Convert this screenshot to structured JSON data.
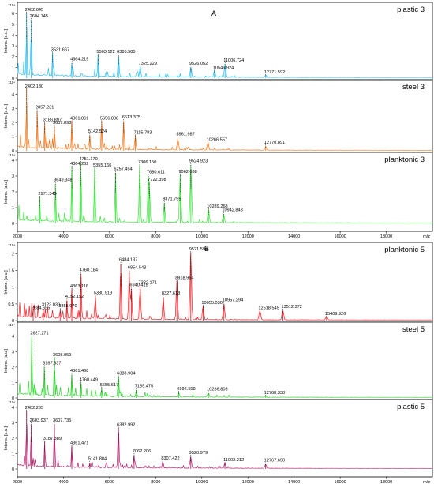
{
  "figure": {
    "section_labels": [
      "A",
      "B"
    ],
    "x_unit": "m/z",
    "y_label": "Intens. [a.u.]",
    "y_exponent": "x10⁴"
  },
  "chart_data": [
    {
      "type": "line",
      "group": "A",
      "name": "plastic 3",
      "color": "#2bbdf0",
      "xlim": [
        2000,
        20000
      ],
      "ylim": [
        0,
        6.6
      ],
      "yticks": [
        0,
        1,
        2,
        3,
        4,
        5,
        6
      ],
      "xticks": [],
      "xticklabels": [],
      "x_axis_labels": false,
      "peaks": [
        {
          "label": "2402.645",
          "x": 2402.6,
          "y": 6.1
        },
        {
          "label": "2604.745",
          "x": 2604.7,
          "y": 5.4
        },
        {
          "label": "3531.667",
          "x": 3531.7,
          "y": 2.4
        },
        {
          "label": "4364.215",
          "x": 4364.2,
          "y": 1.4
        },
        {
          "label": "5503.122",
          "x": 5503.1,
          "y": 2.2
        },
        {
          "label": "6386.585",
          "x": 6386.6,
          "y": 2.1
        },
        {
          "label": "7325.229",
          "x": 7325.2,
          "y": 1.1
        },
        {
          "label": "9526.052",
          "x": 9526.1,
          "y": 1.0
        },
        {
          "label": "10546.924",
          "x": 10546.9,
          "y": 0.7
        },
        {
          "label": "11006.724",
          "x": 11006.7,
          "y": 1.3
        },
        {
          "label": "12771.592",
          "x": 12771.6,
          "y": 0.3
        }
      ]
    },
    {
      "type": "line",
      "group": "A",
      "name": "steel 3",
      "color": "#f47a20",
      "xlim": [
        2000,
        20000
      ],
      "ylim": [
        0,
        4.7
      ],
      "yticks": [
        0,
        1,
        2,
        3,
        4
      ],
      "xticks": [],
      "xticklabels": [],
      "x_axis_labels": false,
      "peaks": [
        {
          "label": "2402.130",
          "x": 2402.1,
          "y": 4.4
        },
        {
          "label": "2857.231",
          "x": 2857.2,
          "y": 2.8
        },
        {
          "label": "3186.897",
          "x": 3186.9,
          "y": 2.0
        },
        {
          "label": "3607.893",
          "x": 3607.9,
          "y": 1.7
        },
        {
          "label": "4361.861",
          "x": 4361.9,
          "y": 2.1
        },
        {
          "label": "5142.524",
          "x": 5142.5,
          "y": 1.1
        },
        {
          "label": "5656.808",
          "x": 5656.8,
          "y": 2.1
        },
        {
          "label": "6613.375",
          "x": 6613.4,
          "y": 2.1
        },
        {
          "label": "7115.783",
          "x": 7115.8,
          "y": 1.1
        },
        {
          "label": "8961.987",
          "x": 8962.0,
          "y": 0.9
        },
        {
          "label": "10266.557",
          "x": 10266.6,
          "y": 0.6
        },
        {
          "label": "12770.891",
          "x": 12770.9,
          "y": 0.3
        }
      ]
    },
    {
      "type": "line",
      "group": "A",
      "name": "planktonic 3",
      "color": "#3de43d",
      "xlim": [
        2000,
        20000
      ],
      "ylim": [
        0,
        4.2
      ],
      "yticks": [
        0,
        1,
        2,
        3,
        4
      ],
      "xticks": [
        2000,
        4000,
        6000,
        8000,
        10000,
        12000,
        14000,
        16000,
        18000
      ],
      "xticklabels": [
        "2000",
        "4000",
        "6000",
        "8000",
        "10000",
        "12000",
        "14000",
        "16000",
        "18000"
      ],
      "x_axis_labels": true,
      "peaks": [
        {
          "label": "2971.345",
          "x": 2971.3,
          "y": 1.7
        },
        {
          "label": "3649.348",
          "x": 3649.3,
          "y": 2.5
        },
        {
          "label": "4364.262",
          "x": 4364.3,
          "y": 3.6
        },
        {
          "label": "4751.170",
          "x": 4751.2,
          "y": 3.9
        },
        {
          "label": "5355.166",
          "x": 5355.2,
          "y": 3.5
        },
        {
          "label": "6257.454",
          "x": 6257.5,
          "y": 3.2
        },
        {
          "label": "7306.150",
          "x": 7306.2,
          "y": 3.7
        },
        {
          "label": "7680.611",
          "x": 7680.6,
          "y": 3.0
        },
        {
          "label": "7722.398",
          "x": 7722.4,
          "y": 2.6
        },
        {
          "label": "8371.795",
          "x": 8371.8,
          "y": 1.3
        },
        {
          "label": "9062.638",
          "x": 9062.6,
          "y": 3.1
        },
        {
          "label": "9524.923",
          "x": 9524.9,
          "y": 3.7
        },
        {
          "label": "10289.268",
          "x": 10289.3,
          "y": 0.9
        },
        {
          "label": "10942.843",
          "x": 10942.8,
          "y": 0.6
        }
      ]
    },
    {
      "type": "line",
      "group": "B",
      "name": "planktonic 5",
      "color": "#e8242b",
      "xlim": [
        2000,
        20000
      ],
      "ylim": [
        0,
        2.2
      ],
      "yticks": [
        0,
        0.5,
        1.0,
        1.5,
        2.0
      ],
      "xticks": [],
      "xticklabels": [],
      "x_axis_labels": false,
      "peaks": [
        {
          "label": "2684.695",
          "x": 2684.7,
          "y": 0.3
        },
        {
          "label": "3123.030",
          "x": 3123.0,
          "y": 0.35
        },
        {
          "label": "3855.970",
          "x": 3856.0,
          "y": 0.35
        },
        {
          "label": "4152.152",
          "x": 4152.2,
          "y": 0.6
        },
        {
          "label": "4363.116",
          "x": 4363.1,
          "y": 0.95
        },
        {
          "label": "4760.184",
          "x": 4760.2,
          "y": 1.4
        },
        {
          "label": "5380.919",
          "x": 5380.9,
          "y": 0.75
        },
        {
          "label": "6484.137",
          "x": 6484.1,
          "y": 1.7
        },
        {
          "label": "6854.543",
          "x": 6854.5,
          "y": 1.5
        },
        {
          "label": "6940.415",
          "x": 6940.4,
          "y": 0.95
        },
        {
          "label": "7322.171",
          "x": 7322.2,
          "y": 1.05
        },
        {
          "label": "8327.618",
          "x": 8327.6,
          "y": 0.7
        },
        {
          "label": "8918.964",
          "x": 8919.0,
          "y": 1.2
        },
        {
          "label": "9521.594",
          "x": 9521.6,
          "y": 2.05
        },
        {
          "label": "10055.030",
          "x": 10055.0,
          "y": 0.45
        },
        {
          "label": "10957.294",
          "x": 10957.3,
          "y": 0.5
        },
        {
          "label": "12518.545",
          "x": 12518.5,
          "y": 0.3
        },
        {
          "label": "13512.372",
          "x": 13512.4,
          "y": 0.3
        },
        {
          "label": "15409.926",
          "x": 15409.9,
          "y": 0.12
        }
      ]
    },
    {
      "type": "line",
      "group": "B",
      "name": "steel 5",
      "color": "#2fd12f",
      "xlim": [
        2000,
        20000
      ],
      "ylim": [
        0,
        4.6
      ],
      "yticks": [
        0,
        1,
        2,
        3,
        4
      ],
      "xticks": [],
      "xticklabels": [],
      "x_axis_labels": false,
      "peaks": [
        {
          "label": "2627.271",
          "x": 2627.3,
          "y": 4.0
        },
        {
          "label": "3167.537",
          "x": 3167.5,
          "y": 2.0
        },
        {
          "label": "3608.059",
          "x": 3608.1,
          "y": 2.6
        },
        {
          "label": "4361.468",
          "x": 4361.5,
          "y": 1.5
        },
        {
          "label": "4760.449",
          "x": 4760.4,
          "y": 1.0
        },
        {
          "label": "5655.617",
          "x": 5655.6,
          "y": 0.6
        },
        {
          "label": "6383.904",
          "x": 6383.9,
          "y": 1.4
        },
        {
          "label": "7159.475",
          "x": 7159.5,
          "y": 0.5
        },
        {
          "label": "8992.558",
          "x": 8992.6,
          "y": 0.4
        },
        {
          "label": "10286.803",
          "x": 10286.8,
          "y": 0.3
        },
        {
          "label": "12768.338",
          "x": 12768.3,
          "y": 0.15
        }
      ]
    },
    {
      "type": "line",
      "group": "B",
      "name": "plastic 5",
      "color": "#b3246e",
      "xlim": [
        2000,
        20000
      ],
      "ylim": [
        0,
        4.2
      ],
      "yticks": [
        0,
        1,
        2,
        3,
        4
      ],
      "xticks": [
        2000,
        4000,
        6000,
        8000,
        10000,
        12000,
        14000,
        16000,
        18000
      ],
      "xticklabels": [
        "2000",
        "4000",
        "6000",
        "8000",
        "10000",
        "12000",
        "14000",
        "16000",
        "18000"
      ],
      "x_axis_labels": true,
      "peaks": [
        {
          "label": "2402.265",
          "x": 2402.3,
          "y": 3.8
        },
        {
          "label": "2603.937",
          "x": 2603.9,
          "y": 2.9
        },
        {
          "label": "3187.389",
          "x": 3187.4,
          "y": 1.8
        },
        {
          "label": "3607.735",
          "x": 3607.7,
          "y": 2.9
        },
        {
          "label": "4361.471",
          "x": 4361.5,
          "y": 1.5
        },
        {
          "label": "5141.884",
          "x": 5141.9,
          "y": 0.4
        },
        {
          "label": "6382.992",
          "x": 6383.0,
          "y": 2.7
        },
        {
          "label": "7062.206",
          "x": 7062.2,
          "y": 0.9
        },
        {
          "label": "8307.422",
          "x": 8307.4,
          "y": 0.5
        },
        {
          "label": "9520.979",
          "x": 9521.0,
          "y": 0.8
        },
        {
          "label": "11002.212",
          "x": 11002.2,
          "y": 0.4
        },
        {
          "label": "12767.690",
          "x": 12767.7,
          "y": 0.3
        }
      ]
    }
  ]
}
